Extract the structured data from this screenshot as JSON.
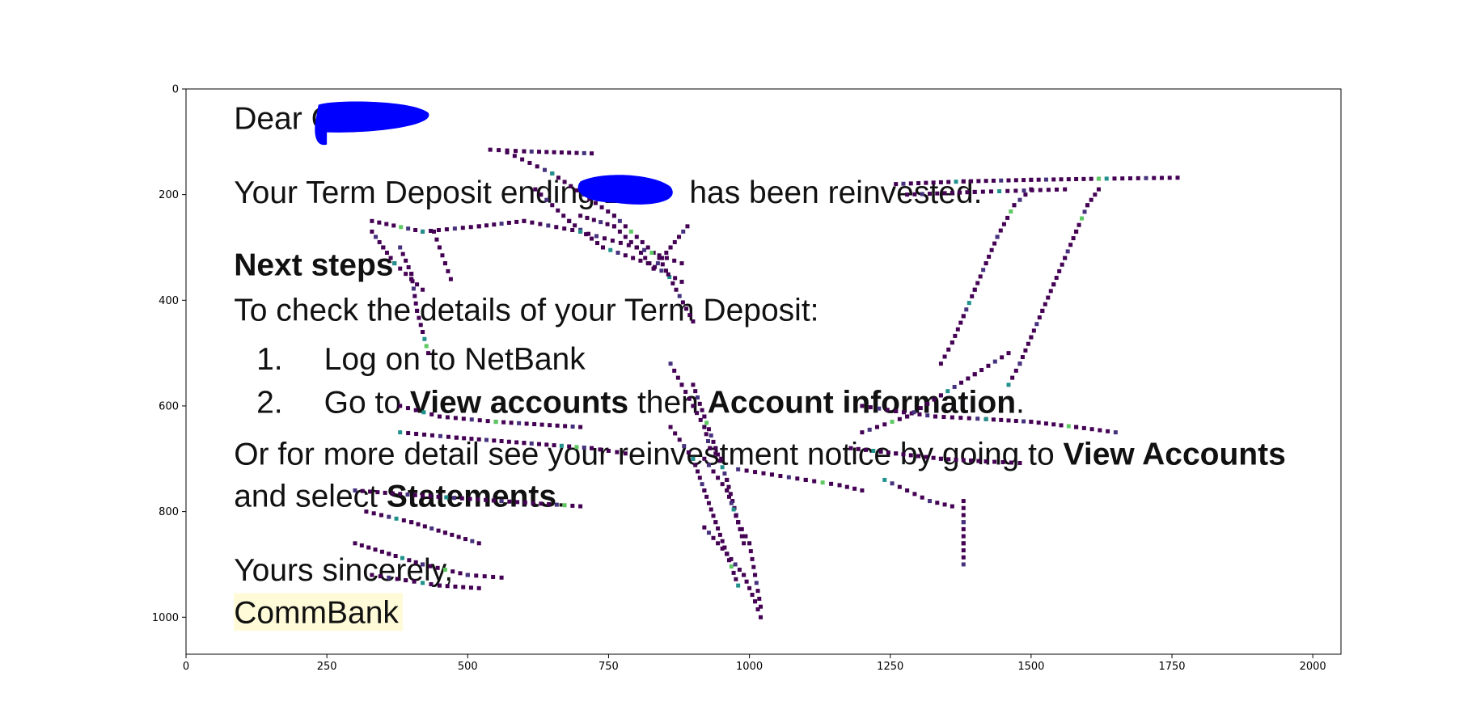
{
  "chart_data": {
    "type": "heatmap",
    "title": "",
    "xlabel": "",
    "ylabel": "",
    "xlim": [
      0,
      2050
    ],
    "ylim": [
      1070,
      0
    ],
    "x_ticks": [
      0,
      250,
      500,
      750,
      1000,
      1250,
      1500,
      1750,
      2000
    ],
    "y_ticks": [
      0,
      200,
      400,
      600,
      800,
      1000
    ],
    "colormap": "viridis",
    "grid": false,
    "background_image": {
      "kind": "email-screenshot",
      "lines": [
        {
          "text": "Dear C",
          "bold": false,
          "y": 55,
          "size": 56
        },
        {
          "text": "Your Term Deposit ending 2",
          "tail": " has been reinvested.",
          "bold": false,
          "y": 195,
          "size": 56
        },
        {
          "text": "Next steps",
          "bold": true,
          "y": 332,
          "size": 56
        },
        {
          "text": "To check the details of your Term Deposit:",
          "bold": false,
          "y": 418,
          "size": 56
        },
        {
          "num": "1.",
          "text": "Log on to NetBank",
          "y": 510,
          "size": 56
        },
        {
          "num": "2.",
          "pre": "Go to ",
          "b1": "View accounts",
          "mid": " then ",
          "b2": "Account information",
          "post": ".",
          "y": 592,
          "size": 56
        },
        {
          "pre": "Or for more detail see your reinvestment notice by going to ",
          "b1": "View Accounts",
          "y": 690,
          "size": 56
        },
        {
          "pre": "and select ",
          "b1": "Statements",
          "post": ".",
          "y": 770,
          "size": 56
        },
        {
          "text": "Yours sincerely,",
          "y": 910,
          "size": 56
        },
        {
          "text": "CommBank",
          "y": 990,
          "size": 56,
          "highlight": "#fffbd9"
        }
      ],
      "redactions": [
        "blue-redaction-1",
        "blue-redaction-2"
      ]
    },
    "overlay_segments": [
      [
        [
          540,
          115
        ],
        [
          600,
          118
        ],
        [
          720,
          122
        ]
      ],
      [
        [
          570,
          120
        ],
        [
          650,
          160
        ],
        [
          760,
          240
        ],
        [
          840,
          320
        ],
        [
          900,
          440
        ]
      ],
      [
        [
          620,
          190
        ],
        [
          680,
          250
        ],
        [
          740,
          300
        ],
        [
          820,
          330
        ],
        [
          880,
          365
        ]
      ],
      [
        [
          700,
          240
        ],
        [
          760,
          260
        ],
        [
          800,
          300
        ],
        [
          830,
          340
        ],
        [
          860,
          300
        ],
        [
          890,
          260
        ]
      ],
      [
        [
          330,
          250
        ],
        [
          420,
          270
        ],
        [
          520,
          260
        ],
        [
          600,
          250
        ],
        [
          700,
          270
        ],
        [
          800,
          300
        ],
        [
          880,
          330
        ]
      ],
      [
        [
          330,
          270
        ],
        [
          350,
          300
        ],
        [
          370,
          330
        ],
        [
          400,
          360
        ],
        [
          420,
          380
        ]
      ],
      [
        [
          380,
          300
        ],
        [
          400,
          350
        ],
        [
          410,
          420
        ],
        [
          420,
          460
        ],
        [
          430,
          500
        ]
      ],
      [
        [
          440,
          270
        ],
        [
          450,
          300
        ],
        [
          460,
          330
        ],
        [
          470,
          360
        ]
      ],
      [
        [
          860,
          520
        ],
        [
          880,
          560
        ],
        [
          900,
          600
        ],
        [
          920,
          640
        ],
        [
          930,
          680
        ],
        [
          950,
          700
        ]
      ],
      [
        [
          900,
          560
        ],
        [
          920,
          620
        ],
        [
          940,
          680
        ],
        [
          960,
          740
        ],
        [
          980,
          820
        ],
        [
          990,
          860
        ]
      ],
      [
        [
          920,
          700
        ],
        [
          960,
          760
        ],
        [
          980,
          820
        ],
        [
          1000,
          860
        ],
        [
          1010,
          920
        ],
        [
          1020,
          980
        ]
      ],
      [
        [
          860,
          640
        ],
        [
          900,
          700
        ],
        [
          920,
          760
        ],
        [
          940,
          820
        ],
        [
          960,
          880
        ],
        [
          980,
          940
        ]
      ],
      [
        [
          920,
          830
        ],
        [
          960,
          880
        ],
        [
          990,
          920
        ],
        [
          1010,
          970
        ],
        [
          1020,
          1000
        ]
      ],
      [
        [
          380,
          600
        ],
        [
          450,
          620
        ],
        [
          550,
          630
        ],
        [
          700,
          640
        ]
      ],
      [
        [
          380,
          650
        ],
        [
          480,
          660
        ],
        [
          600,
          670
        ],
        [
          720,
          680
        ],
        [
          780,
          690
        ]
      ],
      [
        [
          300,
          760
        ],
        [
          420,
          770
        ],
        [
          560,
          780
        ],
        [
          700,
          790
        ]
      ],
      [
        [
          320,
          800
        ],
        [
          400,
          820
        ],
        [
          460,
          840
        ],
        [
          520,
          860
        ]
      ],
      [
        [
          300,
          860
        ],
        [
          360,
          880
        ],
        [
          420,
          900
        ],
        [
          500,
          920
        ],
        [
          560,
          925
        ]
      ],
      [
        [
          330,
          920
        ],
        [
          390,
          930
        ],
        [
          450,
          940
        ],
        [
          520,
          945
        ]
      ],
      [
        [
          980,
          720
        ],
        [
          1040,
          730
        ],
        [
          1100,
          740
        ],
        [
          1160,
          750
        ],
        [
          1200,
          760
        ]
      ],
      [
        [
          1200,
          600
        ],
        [
          1260,
          610
        ],
        [
          1330,
          620
        ],
        [
          1420,
          625
        ],
        [
          1500,
          630
        ],
        [
          1580,
          640
        ],
        [
          1650,
          650
        ]
      ],
      [
        [
          1180,
          680
        ],
        [
          1260,
          690
        ],
        [
          1340,
          700
        ],
        [
          1420,
          705
        ],
        [
          1480,
          708
        ]
      ],
      [
        [
          1240,
          740
        ],
        [
          1280,
          760
        ],
        [
          1320,
          780
        ],
        [
          1360,
          790
        ]
      ],
      [
        [
          1340,
          520
        ],
        [
          1360,
          480
        ],
        [
          1380,
          430
        ],
        [
          1400,
          380
        ],
        [
          1420,
          330
        ],
        [
          1440,
          280
        ],
        [
          1470,
          220
        ],
        [
          1500,
          190
        ]
      ],
      [
        [
          1460,
          560
        ],
        [
          1480,
          520
        ],
        [
          1500,
          470
        ],
        [
          1520,
          420
        ],
        [
          1540,
          370
        ],
        [
          1560,
          320
        ],
        [
          1580,
          270
        ],
        [
          1600,
          220
        ],
        [
          1620,
          190
        ]
      ],
      [
        [
          1260,
          180
        ],
        [
          1380,
          175
        ],
        [
          1500,
          172
        ],
        [
          1620,
          170
        ],
        [
          1760,
          168
        ]
      ],
      [
        [
          1280,
          200
        ],
        [
          1400,
          195
        ],
        [
          1560,
          190
        ]
      ],
      [
        [
          1200,
          650
        ],
        [
          1280,
          620
        ],
        [
          1340,
          580
        ],
        [
          1400,
          540
        ],
        [
          1460,
          500
        ]
      ],
      [
        [
          1380,
          780
        ],
        [
          1380,
          820
        ],
        [
          1380,
          860
        ],
        [
          1380,
          900
        ]
      ]
    ]
  }
}
